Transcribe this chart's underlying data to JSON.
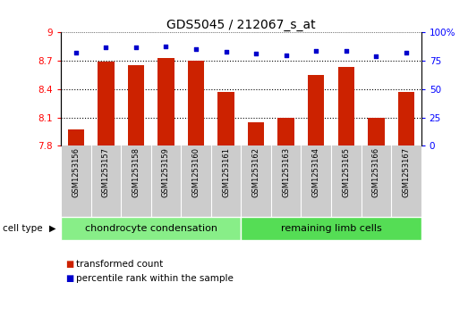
{
  "title": "GDS5045 / 212067_s_at",
  "samples": [
    "GSM1253156",
    "GSM1253157",
    "GSM1253158",
    "GSM1253159",
    "GSM1253160",
    "GSM1253161",
    "GSM1253162",
    "GSM1253163",
    "GSM1253164",
    "GSM1253165",
    "GSM1253166",
    "GSM1253167"
  ],
  "transformed_count": [
    7.97,
    8.69,
    8.65,
    8.73,
    8.7,
    8.37,
    8.05,
    8.1,
    8.55,
    8.63,
    8.1,
    8.37
  ],
  "percentile_rank": [
    82,
    87,
    87,
    88,
    85,
    83,
    81,
    80,
    84,
    84,
    79,
    82
  ],
  "ylim_left": [
    7.8,
    9.0
  ],
  "ylim_right": [
    0,
    100
  ],
  "yticks_left": [
    7.8,
    8.1,
    8.4,
    8.7,
    9.0
  ],
  "yticks_right": [
    0,
    25,
    50,
    75,
    100
  ],
  "ytick_labels_left": [
    "7.8",
    "8.1",
    "8.4",
    "8.7",
    "9"
  ],
  "ytick_labels_right": [
    "0",
    "25",
    "50",
    "75",
    "100%"
  ],
  "bar_color": "#cc2200",
  "dot_color": "#0000cc",
  "group1_label": "chondrocyte condensation",
  "group2_label": "remaining limb cells",
  "group1_count": 6,
  "group2_count": 6,
  "cell_type_label": "cell type",
  "legend_bar_label": "transformed count",
  "legend_dot_label": "percentile rank within the sample",
  "group1_color": "#88ee88",
  "group2_color": "#55dd55",
  "bg_color": "#ffffff",
  "sample_bg_color": "#cccccc",
  "title_fontsize": 10,
  "tick_fontsize": 7.5,
  "sample_fontsize": 6,
  "legend_fontsize": 7.5,
  "group_fontsize": 8,
  "gridline_ticks": [
    8.1,
    8.4,
    8.7
  ]
}
